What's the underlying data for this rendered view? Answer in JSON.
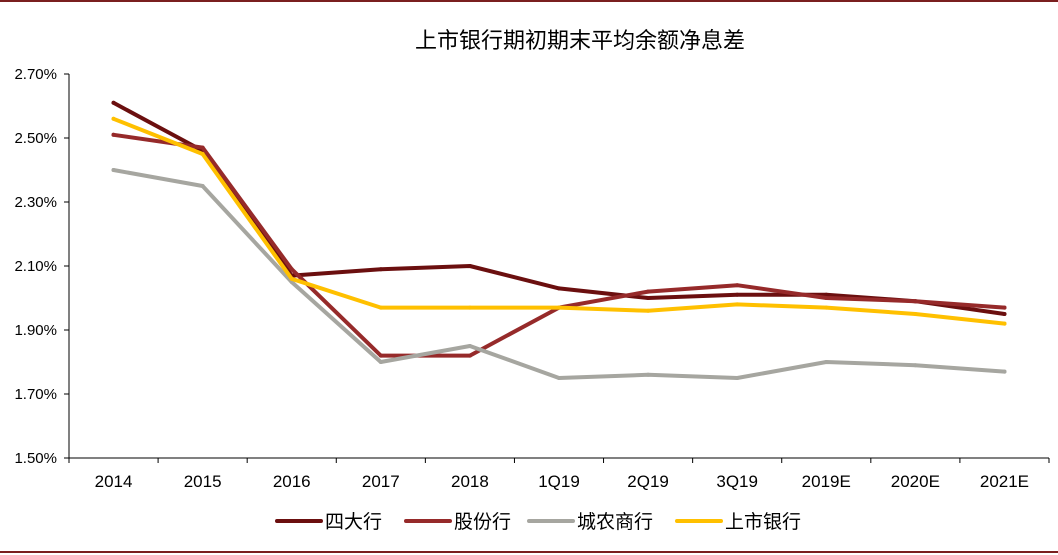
{
  "chart_data": {
    "type": "line",
    "title": "上市银行期初期末平均余额净息差",
    "categories": [
      "2014",
      "2015",
      "2016",
      "2017",
      "2018",
      "1Q19",
      "2Q19",
      "3Q19",
      "2019E",
      "2020E",
      "2021E"
    ],
    "y_ticks": [
      "1.50%",
      "1.70%",
      "1.90%",
      "2.10%",
      "2.30%",
      "2.50%",
      "2.70%"
    ],
    "ylim": [
      1.5,
      2.7
    ],
    "y_unit": "%",
    "grid": false,
    "legend_position": "bottom",
    "series": [
      {
        "name": "四大行",
        "color": "#6b0f0f",
        "values": [
          2.61,
          2.46,
          2.07,
          2.09,
          2.1,
          2.03,
          2.0,
          2.01,
          2.01,
          1.99,
          1.95
        ]
      },
      {
        "name": "股份行",
        "color": "#962a2a",
        "values": [
          2.51,
          2.47,
          2.09,
          1.82,
          1.82,
          1.97,
          2.02,
          2.04,
          2.0,
          1.99,
          1.97
        ]
      },
      {
        "name": "城农商行",
        "color": "#a6a6a0",
        "values": [
          2.4,
          2.35,
          2.05,
          1.8,
          1.85,
          1.75,
          1.76,
          1.75,
          1.8,
          1.79,
          1.77
        ]
      },
      {
        "name": "上市银行",
        "color": "#ffc000",
        "values": [
          2.56,
          2.45,
          2.06,
          1.97,
          1.97,
          1.97,
          1.96,
          1.98,
          1.97,
          1.95,
          1.92
        ]
      }
    ]
  }
}
